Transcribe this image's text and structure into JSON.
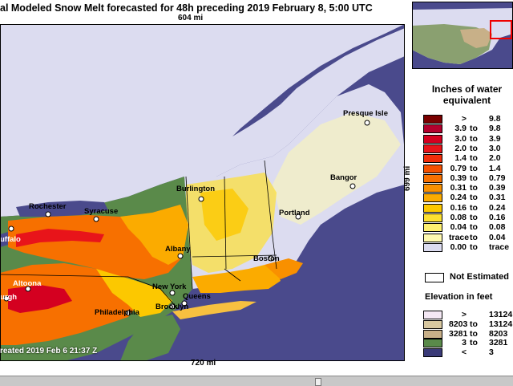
{
  "title": "al Modeled Snow Melt forecasted for 48h preceding 2019 February 8, 5:00 UTC",
  "map": {
    "top_distance": "604 mi",
    "bottom_distance": "720 mi",
    "side_distance": "699 mi",
    "created": "reated 2019 Feb 6 21:37 Z",
    "cities": [
      {
        "name": "Presque Isle"
      },
      {
        "name": "Bangor"
      },
      {
        "name": "Burlington"
      },
      {
        "name": "Portland"
      },
      {
        "name": "Rochester"
      },
      {
        "name": "Syracuse"
      },
      {
        "name": "uffalo"
      },
      {
        "name": "Albany"
      },
      {
        "name": "Boston"
      },
      {
        "name": "Altoona"
      },
      {
        "name": "urgh"
      },
      {
        "name": "New York"
      },
      {
        "name": "Queens"
      },
      {
        "name": "Brooklyn"
      },
      {
        "name": "Philadelphia"
      }
    ],
    "colors": {
      "water": "#4a4a8c",
      "no_snow_land": "#dcdcf0",
      "not_estimated": "#ffffff"
    }
  },
  "legend": {
    "title_line1": "Inches of water",
    "title_line2": "equivalent",
    "rows": [
      {
        "lo": ">",
        "to": "",
        "hi": "9.8",
        "color": "#7a0000"
      },
      {
        "lo": "3.9",
        "to": "to",
        "hi": "9.8",
        "color": "#b3002d"
      },
      {
        "lo": "3.0",
        "to": "to",
        "hi": "3.9",
        "color": "#d40020"
      },
      {
        "lo": "2.0",
        "to": "to",
        "hi": "3.0",
        "color": "#e8141a"
      },
      {
        "lo": "1.4",
        "to": "to",
        "hi": "2.0",
        "color": "#f02d0a"
      },
      {
        "lo": "0.79",
        "to": "to",
        "hi": "1.4",
        "color": "#f55000"
      },
      {
        "lo": "0.39",
        "to": "to",
        "hi": "0.79",
        "color": "#f77000"
      },
      {
        "lo": "0.31",
        "to": "to",
        "hi": "0.39",
        "color": "#f99000"
      },
      {
        "lo": "0.24",
        "to": "to",
        "hi": "0.31",
        "color": "#fbab00"
      },
      {
        "lo": "0.16",
        "to": "to",
        "hi": "0.24",
        "color": "#fcc800"
      },
      {
        "lo": "0.08",
        "to": "to",
        "hi": "0.16",
        "color": "#fde030"
      },
      {
        "lo": "0.04",
        "to": "to",
        "hi": "0.08",
        "color": "#fef070"
      },
      {
        "lo": "trace",
        "to": "to",
        "hi": "0.04",
        "color": "#fffab0"
      },
      {
        "lo": "0.00",
        "to": "to",
        "hi": "trace",
        "color": "#dcdcf0"
      }
    ],
    "not_estimated": "Not Estimated",
    "elevation_title": "Elevation in feet",
    "elevation_rows": [
      {
        "lo": ">",
        "to": "",
        "hi": "13124",
        "color": "#f4e8f4"
      },
      {
        "lo": "8203",
        "to": "to",
        "hi": "13124",
        "color": "#d8c8a0"
      },
      {
        "lo": "3281",
        "to": "to",
        "hi": "8203",
        "color": "#c8b088"
      },
      {
        "lo": "3",
        "to": "to",
        "hi": "3281",
        "color": "#5a8a4a"
      },
      {
        "lo": "<",
        "to": "",
        "hi": "3",
        "color": "#3a3a78"
      }
    ]
  }
}
